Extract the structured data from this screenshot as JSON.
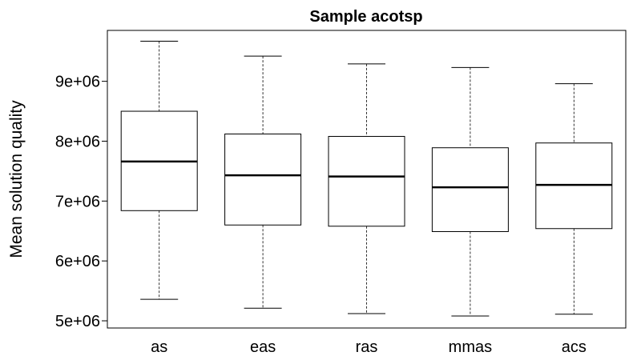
{
  "chart_data": {
    "type": "box",
    "title": "Sample acotsp",
    "xlabel": "",
    "ylabel": "Mean solution quality",
    "categories": [
      "as",
      "eas",
      "ras",
      "mmas",
      "acs"
    ],
    "boxes": [
      {
        "name": "as",
        "min": 5360000,
        "q1": 6840000,
        "median": 7660000,
        "q3": 8500000,
        "max": 9670000
      },
      {
        "name": "eas",
        "min": 5210000,
        "q1": 6600000,
        "median": 7430000,
        "q3": 8120000,
        "max": 9420000
      },
      {
        "name": "ras",
        "min": 5120000,
        "q1": 6580000,
        "median": 7410000,
        "q3": 8080000,
        "max": 9290000
      },
      {
        "name": "mmas",
        "min": 5080000,
        "q1": 6490000,
        "median": 7230000,
        "q3": 7890000,
        "max": 9230000
      },
      {
        "name": "acs",
        "min": 5110000,
        "q1": 6540000,
        "median": 7270000,
        "q3": 7970000,
        "max": 8960000
      }
    ],
    "ylim": [
      4880000,
      9850000
    ],
    "yticks": [
      5000000,
      6000000,
      7000000,
      8000000,
      9000000
    ],
    "ytick_labels": [
      "5e+06",
      "6e+06",
      "7e+06",
      "8e+06",
      "9e+06"
    ],
    "grid": false,
    "legend": "none"
  }
}
